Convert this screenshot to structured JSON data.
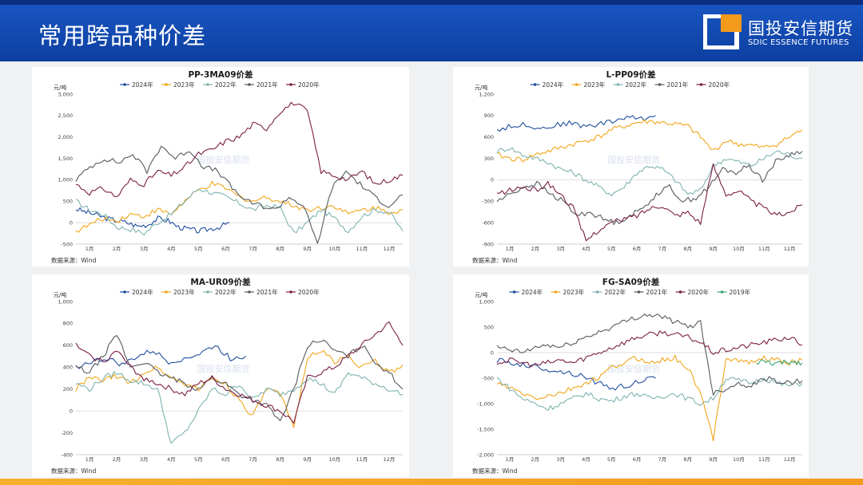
{
  "header": {
    "title": "常用跨品种价差",
    "logo_cn": "国投安信期货",
    "logo_en": "SDIC ESSENCE FUTURES",
    "bg_color": "#0d3fa0",
    "accent_color": "#f39a1c"
  },
  "months": [
    "1月",
    "2月",
    "3月",
    "4月",
    "5月",
    "6月",
    "7月",
    "8月",
    "9月",
    "10月",
    "11月",
    "12月"
  ],
  "series_colors": {
    "2024年": "#1f4e9c",
    "2023年": "#f2a51a",
    "2022年": "#7fb3b0",
    "2021年": "#555a5e",
    "2020年": "#7b1f45",
    "2019年": "#3aa676"
  },
  "charts": [
    {
      "id": "pp",
      "title": "PP-3MA09价差",
      "unit": "元/吨",
      "source": "数据来源：Wind",
      "watermark": "国投安信期货",
      "chart_data": {
        "type": "line",
        "ylim": [
          -500,
          3000
        ],
        "yticks": [
          -500,
          0,
          500,
          "1,000",
          "1,500",
          "2,000",
          "2,500",
          "3,000"
        ],
        "ytick_values": [
          -500,
          0,
          500,
          1000,
          1500,
          2000,
          2500,
          3000
        ],
        "series": [
          {
            "name": "2024年",
            "start": 0,
            "end": 0.47,
            "values": [
              320,
              250,
              180,
              100,
              50,
              0,
              -80,
              -50,
              100,
              50,
              -100,
              -150,
              -200,
              -150,
              -100,
              0
            ]
          },
          {
            "name": "2023年",
            "start": 0,
            "end": 1,
            "values": [
              -200,
              -50,
              100,
              50,
              200,
              150,
              300,
              200,
              500,
              750,
              900,
              800,
              600,
              500,
              600,
              500,
              400,
              300,
              350,
              400,
              200,
              300,
              350,
              250,
              300
            ]
          },
          {
            "name": "2022年",
            "start": 0,
            "end": 1,
            "values": [
              500,
              300,
              200,
              -100,
              -150,
              -250,
              0,
              200,
              500,
              800,
              700,
              600,
              450,
              300,
              400,
              350,
              -250,
              0,
              300,
              100,
              -200,
              150,
              300,
              250,
              -200
            ]
          },
          {
            "name": "2021年",
            "start": 0,
            "end": 1,
            "values": [
              1000,
              1300,
              1500,
              1400,
              1600,
              1200,
              1800,
              1500,
              1700,
              1300,
              1200,
              800,
              500,
              400,
              300,
              600,
              400,
              -500,
              800,
              1200,
              900,
              600,
              400,
              650
            ]
          },
          {
            "name": "2020年",
            "start": 0,
            "end": 1,
            "values": [
              900,
              700,
              800,
              600,
              1000,
              900,
              1200,
              1100,
              1300,
              1600,
              1700,
              1900,
              2000,
              2300,
              2200,
              2600,
              2800,
              2600,
              1200,
              1100,
              1000,
              1200,
              900,
              1000,
              1100
            ]
          }
        ]
      }
    },
    {
      "id": "lpp",
      "title": "L-PP09价差",
      "unit": "元/吨",
      "source": "数据来源：Wind",
      "watermark": "国投安信期货",
      "chart_data": {
        "type": "line",
        "ylim": [
          -900,
          1200
        ],
        "yticks": [
          -900,
          -600,
          -300,
          0,
          300,
          600,
          900,
          "1,200"
        ],
        "ytick_values": [
          -900,
          -600,
          -300,
          0,
          300,
          600,
          900,
          1200
        ],
        "series": [
          {
            "name": "2024年",
            "start": 0,
            "end": 0.52,
            "values": [
              700,
              750,
              780,
              720,
              760,
              800,
              750,
              780,
              820,
              880,
              850,
              900
            ]
          },
          {
            "name": "2023年",
            "start": 0,
            "end": 1,
            "values": [
              350,
              300,
              280,
              350,
              400,
              450,
              500,
              550,
              600,
              700,
              750,
              800,
              820,
              800,
              780,
              750,
              600,
              400,
              550,
              500,
              480,
              450,
              500,
              600,
              700
            ]
          },
          {
            "name": "2022年",
            "start": 0,
            "end": 1,
            "values": [
              400,
              450,
              350,
              300,
              250,
              150,
              100,
              0,
              -100,
              -200,
              -100,
              100,
              200,
              150,
              0,
              -200,
              -150,
              200,
              300,
              250,
              200,
              300,
              400,
              350,
              300
            ]
          },
          {
            "name": "2021年",
            "start": 0,
            "end": 1,
            "values": [
              -300,
              -200,
              -100,
              -50,
              -200,
              -300,
              -500,
              -450,
              -550,
              -600,
              -500,
              -400,
              -200,
              -100,
              -300,
              -250,
              -100,
              150,
              100,
              200,
              0,
              250,
              350,
              400
            ]
          },
          {
            "name": "2020年",
            "start": 0,
            "end": 1,
            "values": [
              -200,
              -150,
              -100,
              -150,
              -50,
              -200,
              -400,
              -850,
              -700,
              -600,
              -550,
              -500,
              -400,
              -350,
              -500,
              -450,
              -600,
              200,
              -200,
              -150,
              -300,
              -400,
              -500,
              -450,
              -350
            ]
          }
        ]
      }
    },
    {
      "id": "maur",
      "title": "MA-UR09价差",
      "unit": "元/吨",
      "source": "数据来源：Wind",
      "watermark": "国投安信期货",
      "chart_data": {
        "type": "line",
        "ylim": [
          -400,
          1000
        ],
        "yticks": [
          -400,
          -200,
          0,
          200,
          400,
          600,
          800,
          "1,000"
        ],
        "ytick_values": [
          -400,
          -200,
          0,
          200,
          400,
          600,
          800,
          1000
        ],
        "series": [
          {
            "name": "2024年",
            "start": 0,
            "end": 0.52,
            "values": [
              400,
              450,
              480,
              420,
              500,
              550,
              450,
              480,
              520,
              600,
              480,
              500
            ]
          },
          {
            "name": "2023年",
            "start": 0,
            "end": 1,
            "values": [
              200,
              300,
              280,
              320,
              250,
              350,
              400,
              300,
              250,
              200,
              300,
              250,
              100,
              -50,
              200,
              150,
              -150,
              500,
              550,
              450,
              500,
              400,
              450,
              350,
              420
            ]
          },
          {
            "name": "2022年",
            "start": 0,
            "end": 1,
            "values": [
              250,
              200,
              300,
              350,
              280,
              250,
              200,
              -300,
              -200,
              0,
              200,
              150,
              250,
              100,
              200,
              150,
              200,
              300,
              250,
              150,
              350,
              300,
              250,
              200,
              150
            ]
          },
          {
            "name": "2021年",
            "start": 0,
            "end": 1,
            "values": [
              400,
              350,
              500,
              700,
              400,
              450,
              350,
              300,
              250,
              200,
              300,
              250,
              150,
              100,
              50,
              -100,
              200,
              600,
              650,
              550,
              500,
              600,
              450,
              350,
              200
            ]
          },
          {
            "name": "2020年",
            "start": 0,
            "end": 1,
            "values": [
              600,
              500,
              450,
              550,
              400,
              300,
              250,
              200,
              150,
              250,
              300,
              200,
              150,
              100,
              50,
              0,
              -100,
              300,
              350,
              400,
              500,
              600,
              700,
              800,
              600
            ]
          }
        ]
      }
    },
    {
      "id": "fgsa",
      "title": "FG-SA09价差",
      "unit": "元/吨",
      "source": "数据来源：Wind",
      "watermark": "国投安信期货",
      "chart_data": {
        "type": "line",
        "ylim": [
          -2000,
          1000
        ],
        "yticks": [
          "-2,000",
          "-1,500",
          "-1,000",
          -500,
          0,
          500,
          "1,000"
        ],
        "ytick_values": [
          -2000,
          -1500,
          -1000,
          -500,
          0,
          500,
          1000
        ],
        "series": [
          {
            "name": "2024年",
            "start": 0,
            "end": 0.52,
            "values": [
              -150,
              -200,
              -250,
              -300,
              -350,
              -400,
              -450,
              -600,
              -700,
              -650,
              -550,
              -500
            ]
          },
          {
            "name": "2023年",
            "start": 0,
            "end": 1,
            "values": [
              -600,
              -700,
              -800,
              -900,
              -850,
              -800,
              -700,
              -600,
              -500,
              -300,
              -200,
              -100,
              -200,
              -150,
              -100,
              -300,
              -800,
              -1700,
              -100,
              -150,
              -200,
              -100,
              -150,
              -200,
              -150
            ]
          },
          {
            "name": "2022年",
            "start": 0,
            "end": 1,
            "values": [
              -500,
              -700,
              -900,
              -1000,
              -1100,
              -1000,
              -900,
              -800,
              -900,
              -950,
              -850,
              -800,
              -900,
              -850,
              -800,
              -900,
              -1000,
              -900,
              -500,
              -550,
              -600,
              -500,
              -600,
              -650,
              -600
            ]
          },
          {
            "name": "2021年",
            "start": 0,
            "end": 1,
            "values": [
              100,
              50,
              0,
              100,
              150,
              100,
              200,
              300,
              400,
              500,
              600,
              700,
              750,
              700,
              600,
              500,
              600,
              -800,
              -700,
              -600,
              -650,
              -500,
              -550,
              -600,
              -550
            ]
          },
          {
            "name": "2020年",
            "start": 0,
            "end": 1,
            "values": [
              -200,
              -150,
              -200,
              -250,
              -200,
              -150,
              -200,
              -100,
              0,
              100,
              200,
              300,
              350,
              400,
              350,
              300,
              200,
              0,
              50,
              100,
              150,
              200,
              250,
              300,
              150
            ]
          },
          {
            "name": "2019年",
            "start": 0.85,
            "end": 1,
            "values": [
              -200,
              -180,
              -220,
              -200,
              -180,
              -200
            ]
          }
        ]
      }
    }
  ]
}
